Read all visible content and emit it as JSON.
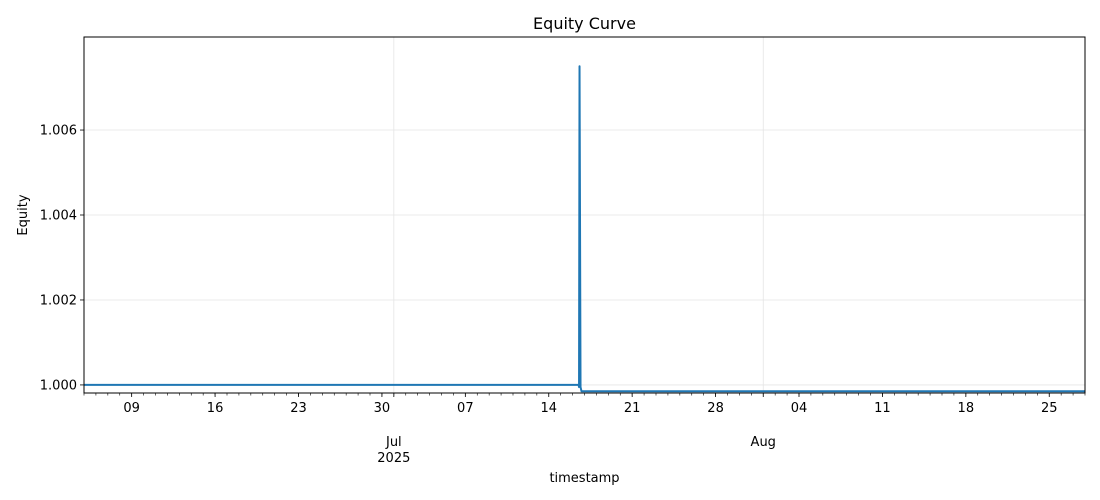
{
  "chart_data": {
    "type": "line",
    "title": "Equity Curve",
    "xlabel": "timestamp",
    "ylabel": "Equity",
    "x_axis": {
      "type": "date",
      "range": [
        "2025-06-05",
        "2025-08-28"
      ],
      "major_ticks": [
        "2025-06-09",
        "2025-06-16",
        "2025-06-23",
        "2025-06-30",
        "2025-07-07",
        "2025-07-14",
        "2025-07-21",
        "2025-07-28",
        "2025-08-04",
        "2025-08-11",
        "2025-08-18",
        "2025-08-25"
      ],
      "major_tick_labels": [
        "09",
        "16",
        "23",
        "30",
        "07",
        "14",
        "21",
        "28",
        "04",
        "11",
        "18",
        "25"
      ],
      "month_labels": [
        {
          "date": "2025-07-01",
          "label": "Jul",
          "year": "2025"
        },
        {
          "date": "2025-08-01",
          "label": "Aug",
          "year": ""
        }
      ],
      "minor_ticks": "daily"
    },
    "y_axis": {
      "range": [
        0.99981,
        1.00819
      ],
      "ticks": [
        1.0,
        1.002,
        1.004,
        1.006
      ],
      "tick_labels": [
        "1.000",
        "1.002",
        "1.004",
        "1.006"
      ]
    },
    "grid": true,
    "series": [
      {
        "color": "#1f77b4",
        "points": [
          {
            "x": "2025-06-05T00:00",
            "y": 1.0
          },
          {
            "x": "2025-07-16T12:00",
            "y": 1.0
          },
          {
            "x": "2025-07-16T13:00",
            "y": 0.99995
          },
          {
            "x": "2025-07-16T14:00",
            "y": 1.0075
          },
          {
            "x": "2025-07-16T16:00",
            "y": 0.99995
          },
          {
            "x": "2025-07-16T18:00",
            "y": 0.99985
          },
          {
            "x": "2025-08-28T00:00",
            "y": 0.99985
          }
        ]
      }
    ]
  }
}
